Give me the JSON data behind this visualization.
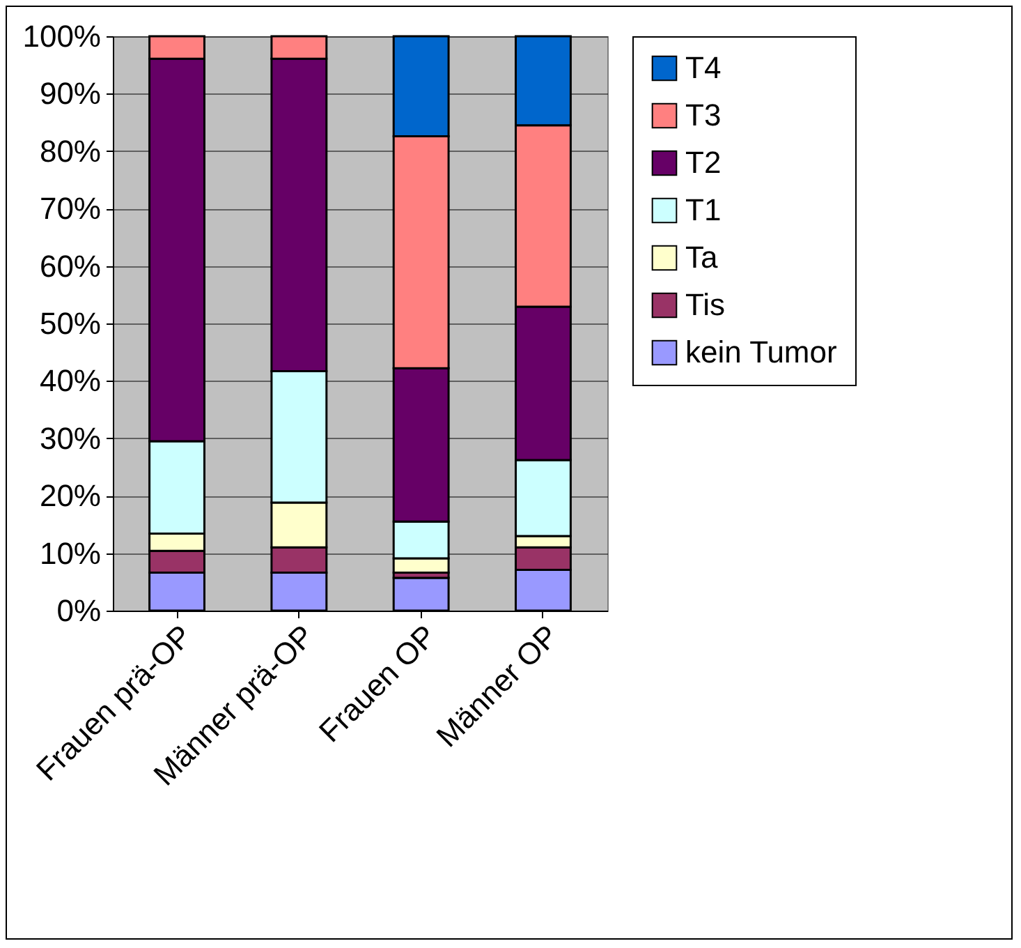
{
  "chart_data": {
    "type": "bar",
    "stacked": true,
    "categories": [
      "Frauen prä-OP",
      "Männer prä-OP",
      "Frauen OP",
      "Männer OP"
    ],
    "series": [
      {
        "name": "kein Tumor",
        "color": "#9999ff",
        "values": [
          6.6,
          6.6,
          5.7,
          7.1
        ]
      },
      {
        "name": "Tis",
        "color": "#993366",
        "values": [
          3.8,
          4.4,
          0.9,
          3.9
        ]
      },
      {
        "name": "Ta",
        "color": "#ffffcc",
        "values": [
          3.0,
          7.8,
          2.5,
          2.0
        ]
      },
      {
        "name": "T1",
        "color": "#ccffff",
        "values": [
          16.1,
          22.9,
          6.4,
          13.2
        ]
      },
      {
        "name": "T2",
        "color": "#660066",
        "values": [
          66.6,
          54.4,
          26.7,
          26.7
        ]
      },
      {
        "name": "T3",
        "color": "#ff8080",
        "values": [
          3.9,
          3.9,
          40.4,
          31.6
        ]
      },
      {
        "name": "T4",
        "color": "#0066cc",
        "values": [
          null,
          null,
          17.4,
          15.5
        ]
      }
    ],
    "ylim": [
      0,
      100
    ],
    "yticks": [
      {
        "value": 0,
        "label": "0%"
      },
      {
        "value": 10,
        "label": "10%"
      },
      {
        "value": 20,
        "label": "20%"
      },
      {
        "value": 30,
        "label": "30%"
      },
      {
        "value": 40,
        "label": "40%"
      },
      {
        "value": 50,
        "label": "50%"
      },
      {
        "value": 60,
        "label": "60%"
      },
      {
        "value": 70,
        "label": "70%"
      },
      {
        "value": 80,
        "label": "80%"
      },
      {
        "value": 90,
        "label": "90%"
      },
      {
        "value": 100,
        "label": "100%"
      }
    ],
    "grid": "y",
    "legend": "right"
  }
}
